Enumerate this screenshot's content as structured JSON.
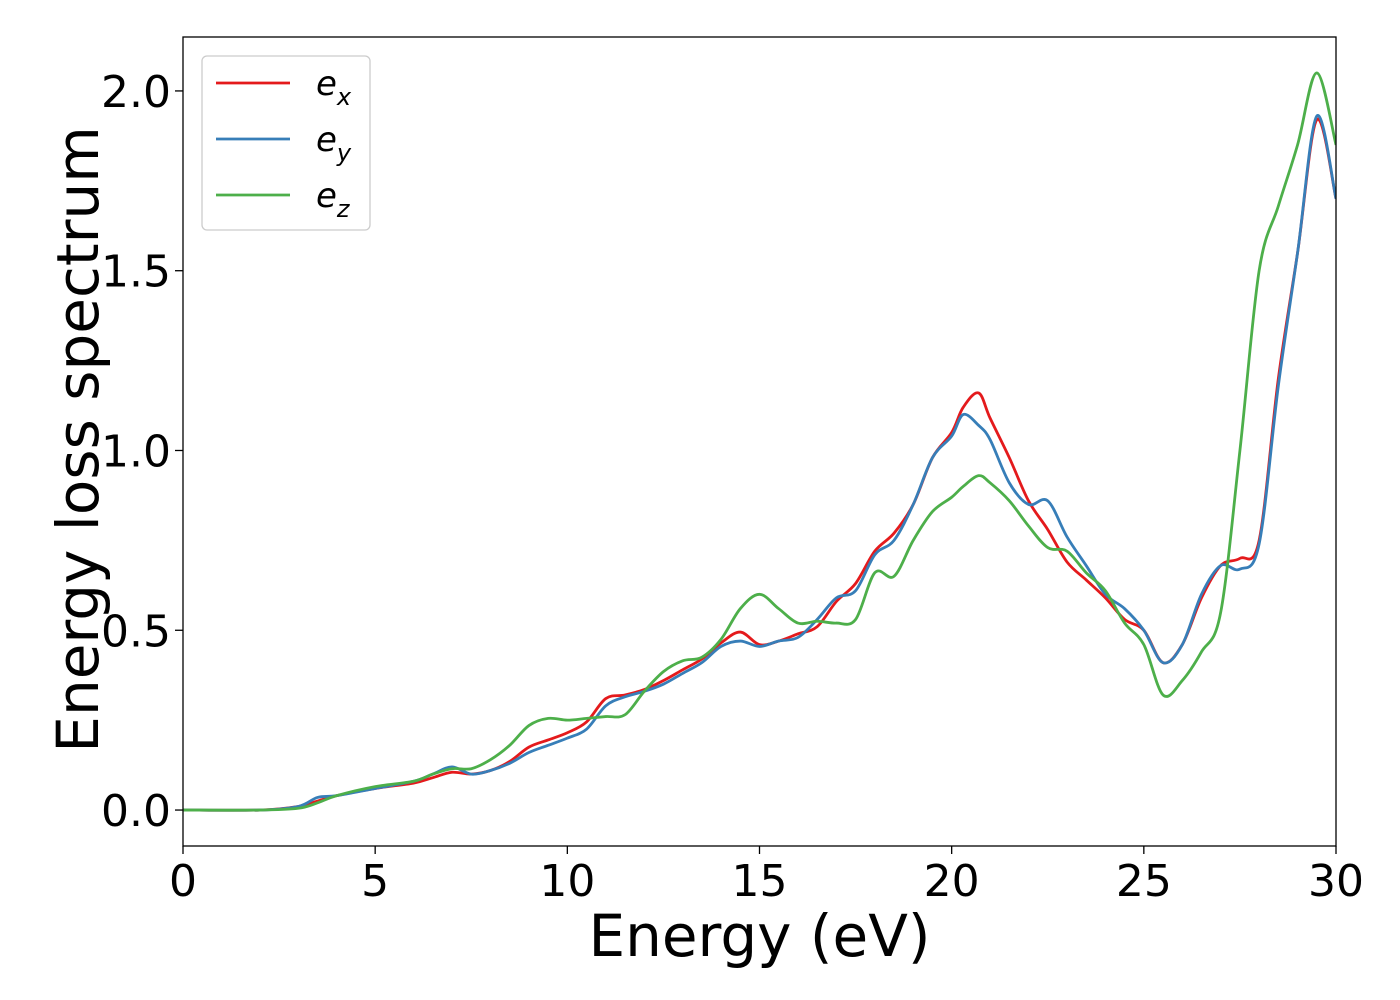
{
  "chart_data": {
    "type": "line",
    "xlabel": "Energy (eV)",
    "ylabel": "Energy loss spectrum",
    "xlim": [
      0,
      30
    ],
    "ylim": [
      -0.1,
      2.15
    ],
    "xticks": [
      0,
      5,
      10,
      15,
      20,
      25,
      30
    ],
    "xtick_labels": [
      "0",
      "5",
      "10",
      "15",
      "20",
      "25",
      "30"
    ],
    "yticks": [
      0.0,
      0.5,
      1.0,
      1.5,
      2.0
    ],
    "ytick_labels": [
      "0.0",
      "0.5",
      "1.0",
      "1.5",
      "2.0"
    ],
    "grid": false,
    "legend_position": "top-left",
    "series": [
      {
        "name": "e_x",
        "label_main": "e",
        "label_sub": "x",
        "color": "#e41a1c",
        "x": [
          0,
          2,
          3,
          3.5,
          4,
          5,
          6,
          6.5,
          7,
          7.5,
          8,
          8.5,
          9,
          9.5,
          10,
          10.5,
          11,
          11.5,
          12,
          12.5,
          13,
          13.5,
          14,
          14.5,
          15,
          15.5,
          16,
          16.5,
          17,
          17.5,
          18,
          18.5,
          19,
          19.5,
          20,
          20.3,
          20.7,
          21,
          21.5,
          22,
          22.5,
          23,
          23.5,
          24,
          24.5,
          25,
          25.5,
          26,
          26.5,
          27,
          27.5,
          28,
          28.5,
          29,
          29.5,
          30
        ],
        "y": [
          0,
          0,
          0.01,
          0.025,
          0.04,
          0.06,
          0.075,
          0.09,
          0.105,
          0.1,
          0.11,
          0.135,
          0.175,
          0.195,
          0.215,
          0.245,
          0.31,
          0.32,
          0.335,
          0.36,
          0.39,
          0.42,
          0.465,
          0.495,
          0.46,
          0.47,
          0.49,
          0.51,
          0.58,
          0.63,
          0.72,
          0.77,
          0.85,
          0.98,
          1.05,
          1.12,
          1.16,
          1.09,
          0.98,
          0.86,
          0.78,
          0.69,
          0.64,
          0.59,
          0.53,
          0.5,
          0.41,
          0.46,
          0.59,
          0.68,
          0.7,
          0.75,
          1.2,
          1.55,
          1.92,
          1.7
        ]
      },
      {
        "name": "e_y",
        "label_main": "e",
        "label_sub": "y",
        "color": "#377eb8",
        "x": [
          0,
          2,
          3,
          3.5,
          4,
          5,
          6,
          6.5,
          7,
          7.5,
          8,
          8.5,
          9,
          9.5,
          10,
          10.5,
          11,
          11.5,
          12,
          12.5,
          13,
          13.5,
          14,
          14.5,
          15,
          15.5,
          16,
          16.5,
          17,
          17.5,
          18,
          18.5,
          19,
          19.5,
          20,
          20.3,
          20.7,
          21,
          21.5,
          22,
          22.5,
          23,
          23.5,
          24,
          24.5,
          25,
          25.5,
          26,
          26.5,
          27,
          27.5,
          28,
          28.5,
          29,
          29.5,
          30
        ],
        "y": [
          0,
          0,
          0.01,
          0.035,
          0.04,
          0.06,
          0.08,
          0.1,
          0.12,
          0.1,
          0.11,
          0.13,
          0.16,
          0.18,
          0.2,
          0.225,
          0.29,
          0.315,
          0.33,
          0.35,
          0.38,
          0.41,
          0.455,
          0.47,
          0.455,
          0.47,
          0.48,
          0.53,
          0.59,
          0.61,
          0.71,
          0.75,
          0.85,
          0.98,
          1.04,
          1.1,
          1.07,
          1.03,
          0.91,
          0.85,
          0.86,
          0.76,
          0.68,
          0.6,
          0.56,
          0.5,
          0.41,
          0.46,
          0.6,
          0.68,
          0.67,
          0.74,
          1.18,
          1.55,
          1.93,
          1.7
        ]
      },
      {
        "name": "e_z",
        "label_main": "e",
        "label_sub": "z",
        "color": "#4daf4a",
        "x": [
          0,
          2,
          3,
          3.5,
          4,
          5,
          6,
          6.5,
          7,
          7.5,
          8,
          8.5,
          9,
          9.5,
          10,
          10.5,
          11,
          11.5,
          12,
          12.5,
          13,
          13.5,
          14,
          14.5,
          15,
          15.5,
          16,
          16.5,
          17,
          17.5,
          18,
          18.5,
          19,
          19.5,
          20,
          20.3,
          20.7,
          21,
          21.5,
          22,
          22.5,
          23,
          23.5,
          24,
          24.5,
          25,
          25.5,
          26,
          26.5,
          27,
          27.5,
          28,
          28.5,
          29,
          29.5,
          30
        ],
        "y": [
          0,
          0,
          0.005,
          0.02,
          0.04,
          0.065,
          0.08,
          0.1,
          0.115,
          0.115,
          0.14,
          0.18,
          0.235,
          0.255,
          0.25,
          0.255,
          0.26,
          0.265,
          0.33,
          0.385,
          0.415,
          0.425,
          0.475,
          0.56,
          0.6,
          0.56,
          0.52,
          0.525,
          0.52,
          0.53,
          0.66,
          0.65,
          0.75,
          0.83,
          0.87,
          0.9,
          0.93,
          0.91,
          0.86,
          0.79,
          0.73,
          0.72,
          0.66,
          0.61,
          0.52,
          0.46,
          0.32,
          0.36,
          0.44,
          0.55,
          1.0,
          1.5,
          1.68,
          1.85,
          2.05,
          1.85
        ]
      }
    ]
  }
}
